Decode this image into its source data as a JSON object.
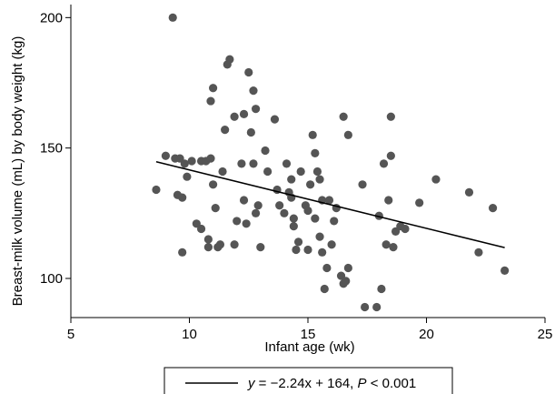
{
  "chart_data": {
    "type": "scatter",
    "xlabel": "Infant age (wk)",
    "ylabel": "Breast-milk volume (mL) by body weight (kg)",
    "xlim": [
      5,
      25
    ],
    "ylim": [
      85,
      205
    ],
    "xticks": [
      5,
      10,
      15,
      20,
      25
    ],
    "yticks": [
      100,
      150,
      200
    ],
    "grid": false,
    "legend": {
      "placement": "bottom",
      "label": "y = −2.24x + 164, P < 0.001"
    },
    "fit_line": {
      "slope": -2.24,
      "intercept": 164,
      "x_range": [
        8.6,
        23.3
      ]
    },
    "points": [
      [
        8.6,
        134
      ],
      [
        9.0,
        147
      ],
      [
        9.3,
        200
      ],
      [
        9.4,
        146
      ],
      [
        9.5,
        132
      ],
      [
        9.6,
        146
      ],
      [
        9.7,
        110
      ],
      [
        9.7,
        131
      ],
      [
        9.8,
        144
      ],
      [
        9.9,
        139
      ],
      [
        10.1,
        145
      ],
      [
        10.3,
        121
      ],
      [
        10.5,
        119
      ],
      [
        10.5,
        145
      ],
      [
        10.7,
        145
      ],
      [
        10.8,
        115
      ],
      [
        10.8,
        112
      ],
      [
        10.9,
        146
      ],
      [
        10.9,
        168
      ],
      [
        11.0,
        173
      ],
      [
        11.0,
        136
      ],
      [
        11.1,
        127
      ],
      [
        11.2,
        112
      ],
      [
        11.3,
        113
      ],
      [
        11.4,
        141
      ],
      [
        11.5,
        157
      ],
      [
        11.6,
        182
      ],
      [
        11.7,
        184
      ],
      [
        11.9,
        162
      ],
      [
        11.9,
        113
      ],
      [
        12.0,
        122
      ],
      [
        12.2,
        144
      ],
      [
        12.3,
        163
      ],
      [
        12.3,
        130
      ],
      [
        12.4,
        121
      ],
      [
        12.5,
        179
      ],
      [
        12.6,
        156
      ],
      [
        12.7,
        144
      ],
      [
        12.7,
        172
      ],
      [
        12.8,
        165
      ],
      [
        12.8,
        125
      ],
      [
        12.9,
        128
      ],
      [
        13.0,
        112
      ],
      [
        13.2,
        149
      ],
      [
        13.3,
        141
      ],
      [
        13.6,
        161
      ],
      [
        13.7,
        134
      ],
      [
        13.8,
        128
      ],
      [
        14.0,
        125
      ],
      [
        14.1,
        144
      ],
      [
        14.2,
        133
      ],
      [
        14.3,
        131
      ],
      [
        14.3,
        138
      ],
      [
        14.4,
        123
      ],
      [
        14.4,
        120
      ],
      [
        14.5,
        111
      ],
      [
        14.6,
        114
      ],
      [
        14.7,
        141
      ],
      [
        14.9,
        128
      ],
      [
        15.0,
        111
      ],
      [
        15.0,
        126
      ],
      [
        15.1,
        136
      ],
      [
        15.2,
        155
      ],
      [
        15.3,
        148
      ],
      [
        15.3,
        123
      ],
      [
        15.4,
        141
      ],
      [
        15.5,
        138
      ],
      [
        15.5,
        116
      ],
      [
        15.6,
        130
      ],
      [
        15.6,
        110
      ],
      [
        15.7,
        96
      ],
      [
        15.8,
        104
      ],
      [
        15.9,
        130
      ],
      [
        16.0,
        113
      ],
      [
        16.1,
        122
      ],
      [
        16.2,
        127
      ],
      [
        16.4,
        101
      ],
      [
        16.5,
        162
      ],
      [
        16.5,
        98
      ],
      [
        16.6,
        99
      ],
      [
        16.7,
        155
      ],
      [
        16.7,
        104
      ],
      [
        17.3,
        136
      ],
      [
        17.4,
        89
      ],
      [
        17.9,
        89
      ],
      [
        18.0,
        124
      ],
      [
        18.1,
        96
      ],
      [
        18.2,
        144
      ],
      [
        18.3,
        113
      ],
      [
        18.4,
        130
      ],
      [
        18.5,
        147
      ],
      [
        18.5,
        162
      ],
      [
        18.6,
        112
      ],
      [
        18.7,
        118
      ],
      [
        18.9,
        120
      ],
      [
        19.1,
        119
      ],
      [
        19.7,
        129
      ],
      [
        20.4,
        138
      ],
      [
        21.8,
        133
      ],
      [
        22.2,
        110
      ],
      [
        22.8,
        127
      ],
      [
        23.3,
        103
      ]
    ]
  }
}
